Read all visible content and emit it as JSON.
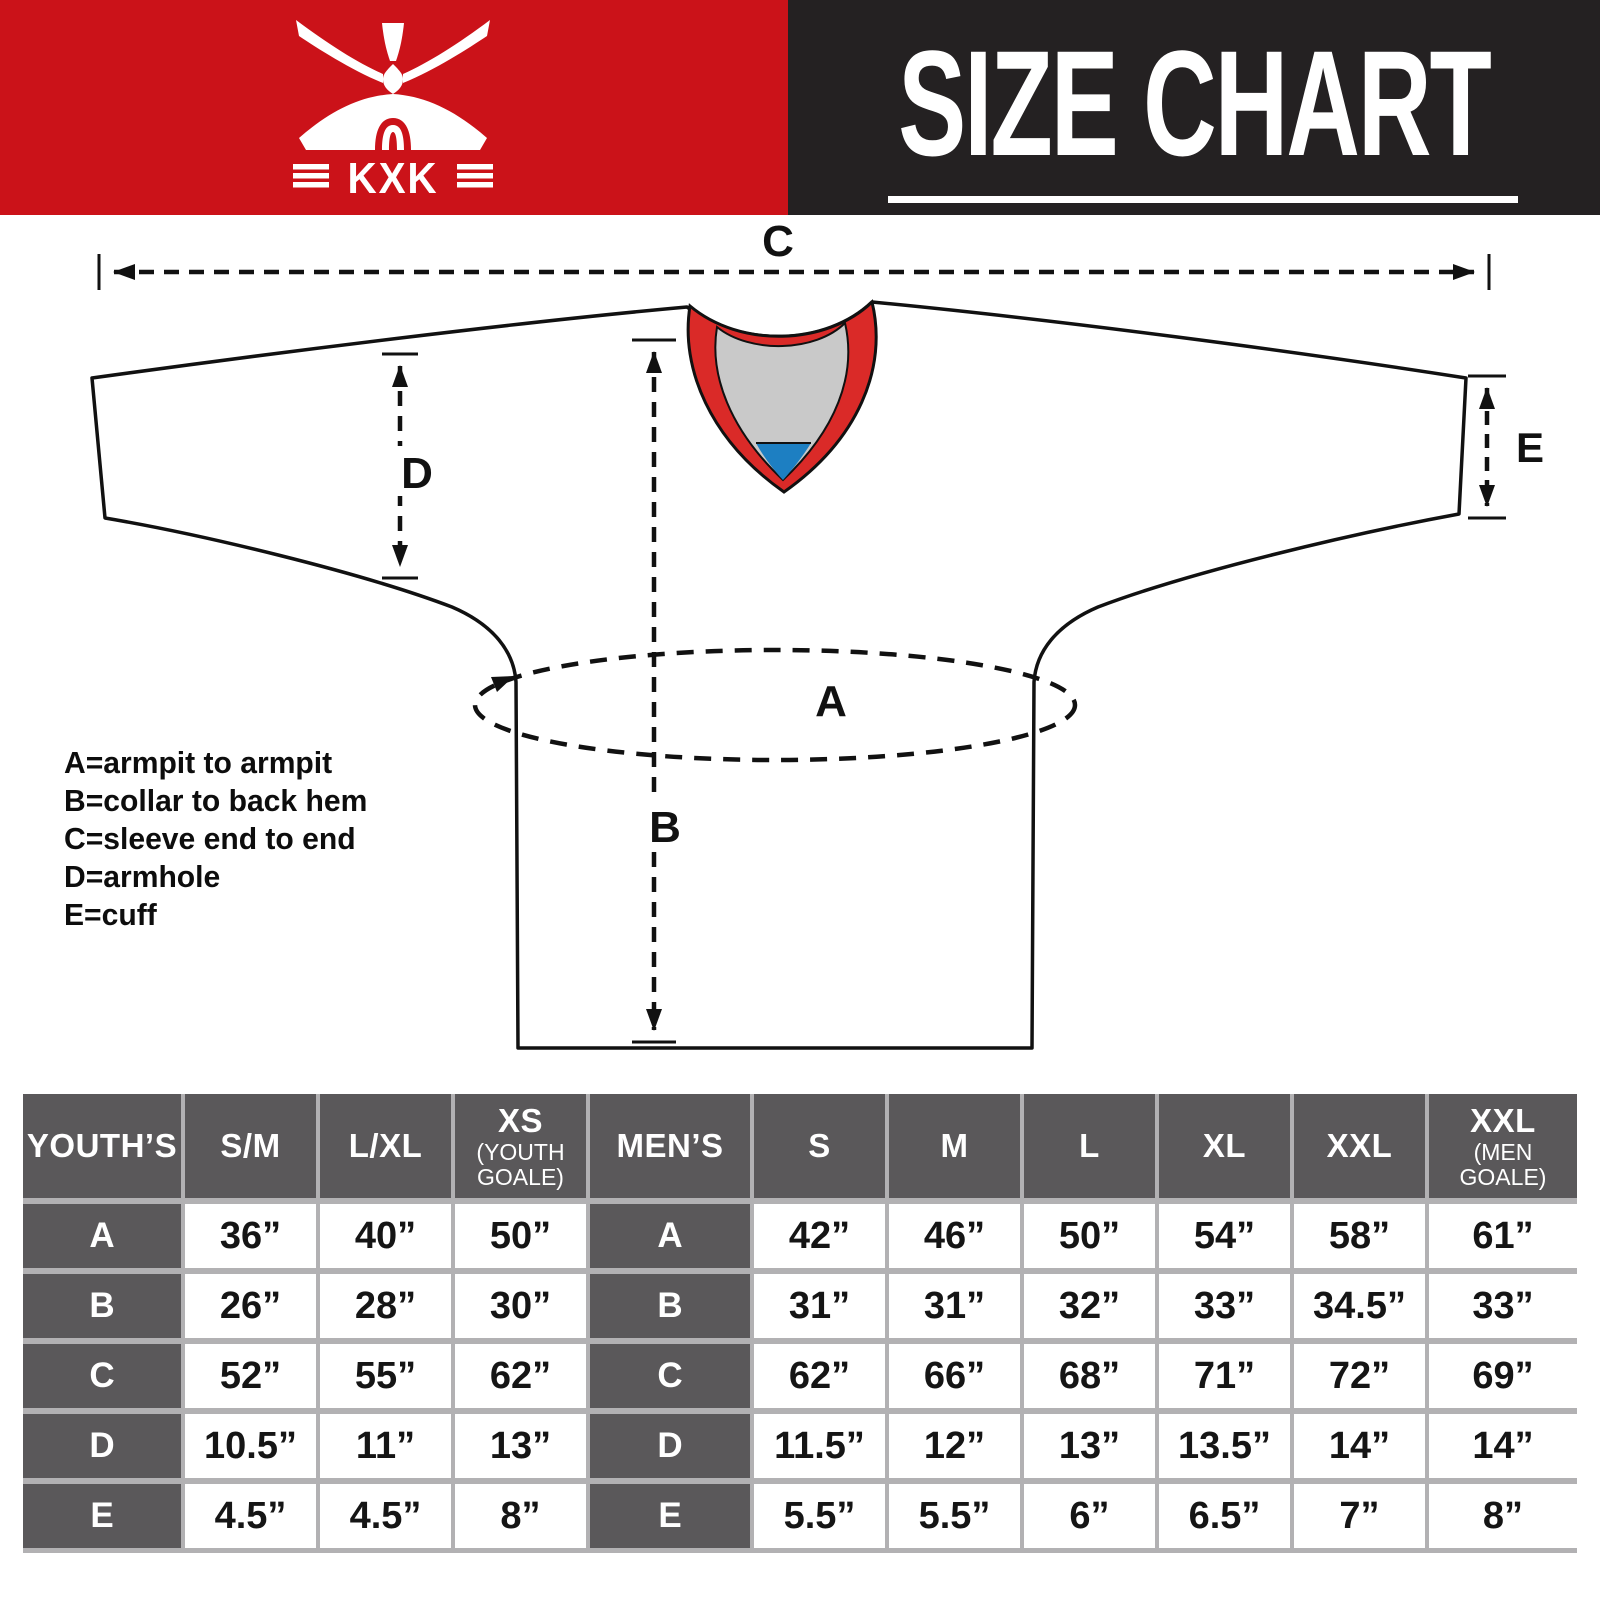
{
  "colors": {
    "banner_red": "#cb1219",
    "banner_dark": "#242122",
    "collar_red": "#da2a28",
    "collar_gray": "#c9c9c9",
    "collar_blue": "#1d7fc2",
    "cell_gray": "#5a585a",
    "gap_gray": "#b2b1b3",
    "line_black": "#111111"
  },
  "brand": {
    "wordmark": "KXK"
  },
  "header": {
    "title": "SIZE CHART"
  },
  "diagram": {
    "labels": {
      "a": "A",
      "b": "B",
      "c": "C",
      "d": "D",
      "e": "E"
    },
    "legend": [
      "A=armpit to armpit",
      "B=collar to back hem",
      "C=sleeve end to end",
      "D=armhole",
      "E=cuff"
    ]
  },
  "table": {
    "header": [
      {
        "label": "YOUTH’S",
        "type": "label"
      },
      {
        "label": "S/M"
      },
      {
        "label": "L/XL"
      },
      {
        "label": "XS",
        "sub": "(YOUTH GOALE)"
      },
      {
        "label": "MEN’S",
        "type": "label"
      },
      {
        "label": "S"
      },
      {
        "label": "M"
      },
      {
        "label": "L"
      },
      {
        "label": "XL"
      },
      {
        "label": "XXL"
      },
      {
        "label": "XXL",
        "sub": "(MEN GOALE)"
      }
    ],
    "rows": [
      {
        "label": "A",
        "youth": [
          "36”",
          "40”",
          "50”"
        ],
        "men": [
          "42”",
          "46”",
          "50”",
          "54”",
          "58”",
          "61”"
        ]
      },
      {
        "label": "B",
        "youth": [
          "26”",
          "28”",
          "30”"
        ],
        "men": [
          "31”",
          "31”",
          "32”",
          "33”",
          "34.5”",
          "33”"
        ]
      },
      {
        "label": "C",
        "youth": [
          "52”",
          "55”",
          "62”"
        ],
        "men": [
          "62”",
          "66”",
          "68”",
          "71”",
          "72”",
          "69”"
        ]
      },
      {
        "label": "D",
        "youth": [
          "10.5”",
          "11”",
          "13”"
        ],
        "men": [
          "11.5”",
          "12”",
          "13”",
          "13.5”",
          "14”",
          "14”"
        ]
      },
      {
        "label": "E",
        "youth": [
          "4.5”",
          "4.5”",
          "8”"
        ],
        "men": [
          "5.5”",
          "5.5”",
          "6”",
          "6.5”",
          "7”",
          "8”"
        ]
      }
    ]
  }
}
